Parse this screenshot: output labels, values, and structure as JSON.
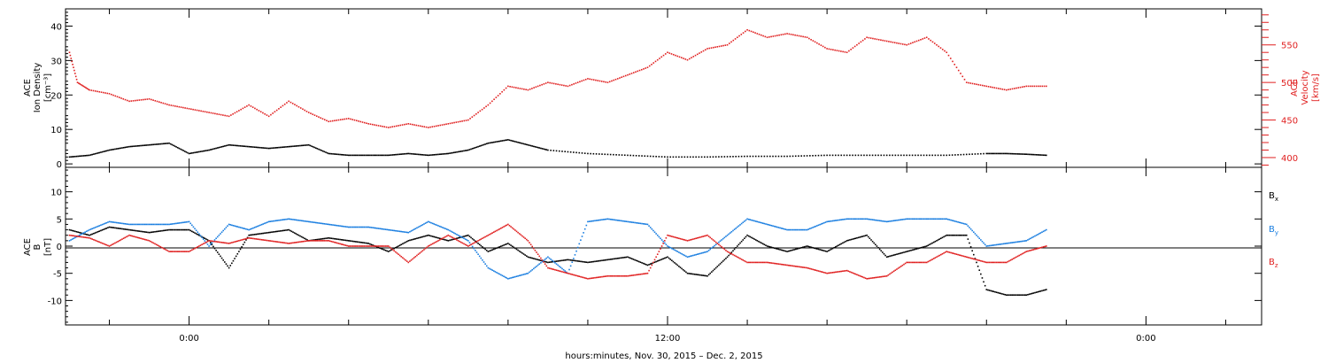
{
  "chart_data": [
    {
      "type": "scatter",
      "panel": "top",
      "y_left": {
        "label_lines": [
          "ACE",
          "Ion Density",
          "[cm⁻³]"
        ],
        "range": [
          -1,
          45
        ],
        "ticks": [
          0,
          10,
          20,
          30,
          40
        ],
        "color": "#000000"
      },
      "y_right": {
        "label_lines": [
          "ACE",
          "Velocity",
          "[km/s]"
        ],
        "range": [
          387,
          598
        ],
        "ticks": [
          400,
          450,
          500,
          550
        ],
        "color": "#e02020"
      },
      "series": [
        {
          "axis": "left",
          "color": "#000000",
          "x": [
            -3.0,
            -2.5,
            -2.0,
            -1.5,
            -1.0,
            -0.5,
            0.0,
            0.5,
            1.0,
            1.5,
            2.0,
            2.5,
            3.0,
            3.5,
            4.0,
            4.5,
            5.0,
            5.5,
            6.0,
            6.5,
            7.0,
            7.5,
            8.0,
            8.5,
            9.0,
            10.0,
            11.0,
            12.0,
            13.0,
            14.0,
            15.0,
            16.0,
            17.0,
            18.0,
            19.0,
            20.0,
            20.5,
            21.0,
            21.5
          ],
          "y": [
            2.0,
            2.5,
            4.0,
            5.0,
            5.5,
            6.0,
            3.0,
            4.0,
            5.5,
            5.0,
            4.5,
            5.0,
            5.5,
            3.0,
            2.5,
            2.5,
            2.5,
            3.0,
            2.5,
            3.0,
            4.0,
            6.0,
            7.0,
            5.5,
            4.0,
            3.0,
            2.5,
            2.0,
            2.0,
            2.2,
            2.2,
            2.5,
            2.5,
            2.5,
            2.5,
            3.0,
            3.0,
            2.8,
            2.5
          ]
        },
        {
          "axis": "right",
          "color": "#e02020",
          "x": [
            -3.0,
            -2.8,
            -2.5,
            -2.0,
            -1.5,
            -1.0,
            -0.5,
            0.0,
            0.5,
            1.0,
            1.5,
            2.0,
            2.5,
            3.0,
            3.5,
            4.0,
            4.5,
            5.0,
            5.5,
            6.0,
            6.5,
            7.0,
            7.5,
            8.0,
            8.5,
            9.0,
            9.5,
            10.0,
            10.5,
            11.0,
            11.5,
            12.0,
            12.5,
            13.0,
            13.5,
            14.0,
            14.5,
            15.0,
            15.5,
            16.0,
            16.5,
            17.0,
            17.5,
            18.0,
            18.5,
            19.0,
            19.5,
            20.0,
            20.5,
            21.0,
            21.5
          ],
          "y": [
            540,
            500,
            490,
            485,
            475,
            478,
            470,
            465,
            460,
            455,
            470,
            455,
            475,
            460,
            448,
            452,
            445,
            440,
            445,
            440,
            445,
            450,
            470,
            495,
            490,
            500,
            495,
            505,
            500,
            510,
            520,
            540,
            530,
            545,
            550,
            570,
            560,
            565,
            560,
            545,
            540,
            560,
            555,
            550,
            560,
            540,
            500,
            495,
            490,
            495,
            495
          ]
        }
      ]
    },
    {
      "type": "scatter",
      "panel": "bottom",
      "y_left": {
        "label_lines": [
          "ACE",
          "B",
          "[nT]"
        ],
        "range": [
          -14.5,
          14.5
        ],
        "ticks": [
          -10,
          -5,
          0,
          5,
          10
        ],
        "color": "#000000"
      },
      "legend_position": "right",
      "series": [
        {
          "name": "B",
          "subscript": "x",
          "color": "#000000",
          "x": [
            -3.0,
            -2.5,
            -2.0,
            -1.5,
            -1.0,
            -0.5,
            0.0,
            0.5,
            1.0,
            1.5,
            2.0,
            2.5,
            3.0,
            3.5,
            4.0,
            4.5,
            5.0,
            5.5,
            6.0,
            6.5,
            7.0,
            7.5,
            8.0,
            8.5,
            9.0,
            9.5,
            10.0,
            10.5,
            11.0,
            11.5,
            12.0,
            12.5,
            13.0,
            13.5,
            14.0,
            14.5,
            15.0,
            15.5,
            16.0,
            16.5,
            17.0,
            17.5,
            18.0,
            18.5,
            19.0,
            19.5,
            20.0,
            20.5,
            21.0,
            21.5
          ],
          "y": [
            3.0,
            2.0,
            3.5,
            3.0,
            2.5,
            3.0,
            3.0,
            1.0,
            -4.0,
            2.0,
            2.5,
            3.0,
            1.0,
            1.5,
            1.0,
            0.5,
            -1.0,
            1.0,
            2.0,
            1.0,
            2.0,
            -1.0,
            0.5,
            -2.0,
            -3.0,
            -2.5,
            -3.0,
            -2.5,
            -2.0,
            -3.5,
            -2.0,
            -5.0,
            -5.5,
            -2.0,
            2.0,
            0.0,
            -1.0,
            0.0,
            -1.0,
            1.0,
            2.0,
            -2.0,
            -1.0,
            0.0,
            2.0,
            2.0,
            -8.0,
            -9.0,
            -9.0,
            -8.0
          ]
        },
        {
          "name": "B",
          "subscript": "y",
          "color": "#1a7ee0",
          "x": [
            -3.0,
            -2.5,
            -2.0,
            -1.5,
            -1.0,
            -0.5,
            0.0,
            0.5,
            1.0,
            1.5,
            2.0,
            2.5,
            3.0,
            3.5,
            4.0,
            4.5,
            5.0,
            5.5,
            6.0,
            6.5,
            7.0,
            7.5,
            8.0,
            8.5,
            9.0,
            9.5,
            10.0,
            10.5,
            11.0,
            11.5,
            12.0,
            12.5,
            13.0,
            13.5,
            14.0,
            14.5,
            15.0,
            15.5,
            16.0,
            16.5,
            17.0,
            17.5,
            18.0,
            18.5,
            19.0,
            19.5,
            20.0,
            20.5,
            21.0,
            21.5
          ],
          "y": [
            1.0,
            3.0,
            4.5,
            4.0,
            4.0,
            4.0,
            4.5,
            0.0,
            4.0,
            3.0,
            4.5,
            5.0,
            4.5,
            4.0,
            3.5,
            3.5,
            3.0,
            2.5,
            4.5,
            3.0,
            1.0,
            -4.0,
            -6.0,
            -5.0,
            -2.0,
            -5.0,
            4.5,
            5.0,
            4.5,
            4.0,
            0.0,
            -2.0,
            -1.0,
            2.0,
            5.0,
            4.0,
            3.0,
            3.0,
            4.5,
            5.0,
            5.0,
            4.5,
            5.0,
            5.0,
            5.0,
            4.0,
            0.0,
            0.5,
            1.0,
            3.0
          ]
        },
        {
          "name": "B",
          "subscript": "z",
          "color": "#e02020",
          "x": [
            -3.0,
            -2.5,
            -2.0,
            -1.5,
            -1.0,
            -0.5,
            0.0,
            0.5,
            1.0,
            1.5,
            2.0,
            2.5,
            3.0,
            3.5,
            4.0,
            4.5,
            5.0,
            5.5,
            6.0,
            6.5,
            7.0,
            7.5,
            8.0,
            8.5,
            9.0,
            9.5,
            10.0,
            10.5,
            11.0,
            11.5,
            12.0,
            12.5,
            13.0,
            13.5,
            14.0,
            14.5,
            15.0,
            15.5,
            16.0,
            16.5,
            17.0,
            17.5,
            18.0,
            18.5,
            19.0,
            19.5,
            20.0,
            20.5,
            21.0,
            21.5
          ],
          "y": [
            2.0,
            1.5,
            0.0,
            2.0,
            1.0,
            -1.0,
            -1.0,
            1.0,
            0.5,
            1.5,
            1.0,
            0.5,
            1.0,
            1.0,
            0.0,
            0.0,
            0.0,
            -3.0,
            0.0,
            2.0,
            0.0,
            2.0,
            4.0,
            1.0,
            -4.0,
            -5.0,
            -6.0,
            -5.5,
            -5.5,
            -5.0,
            2.0,
            1.0,
            2.0,
            -1.0,
            -3.0,
            -3.0,
            -3.5,
            -4.0,
            -5.0,
            -4.5,
            -6.0,
            -5.5,
            -3.0,
            -3.0,
            -1.0,
            -2.0,
            -3.0,
            -3.0,
            -1.0,
            0.0
          ]
        }
      ]
    }
  ],
  "x_axis": {
    "ticks": [
      {
        "value": 0,
        "label": "0:00"
      },
      {
        "value": 12,
        "label": "12:00"
      },
      {
        "value": 24,
        "label": "0:00"
      }
    ],
    "range": [
      -3.1,
      26.9
    ],
    "minor_step": 2
  },
  "xlabel": "hours:minutes, Nov. 30, 2015 – Dec. 2, 2015"
}
